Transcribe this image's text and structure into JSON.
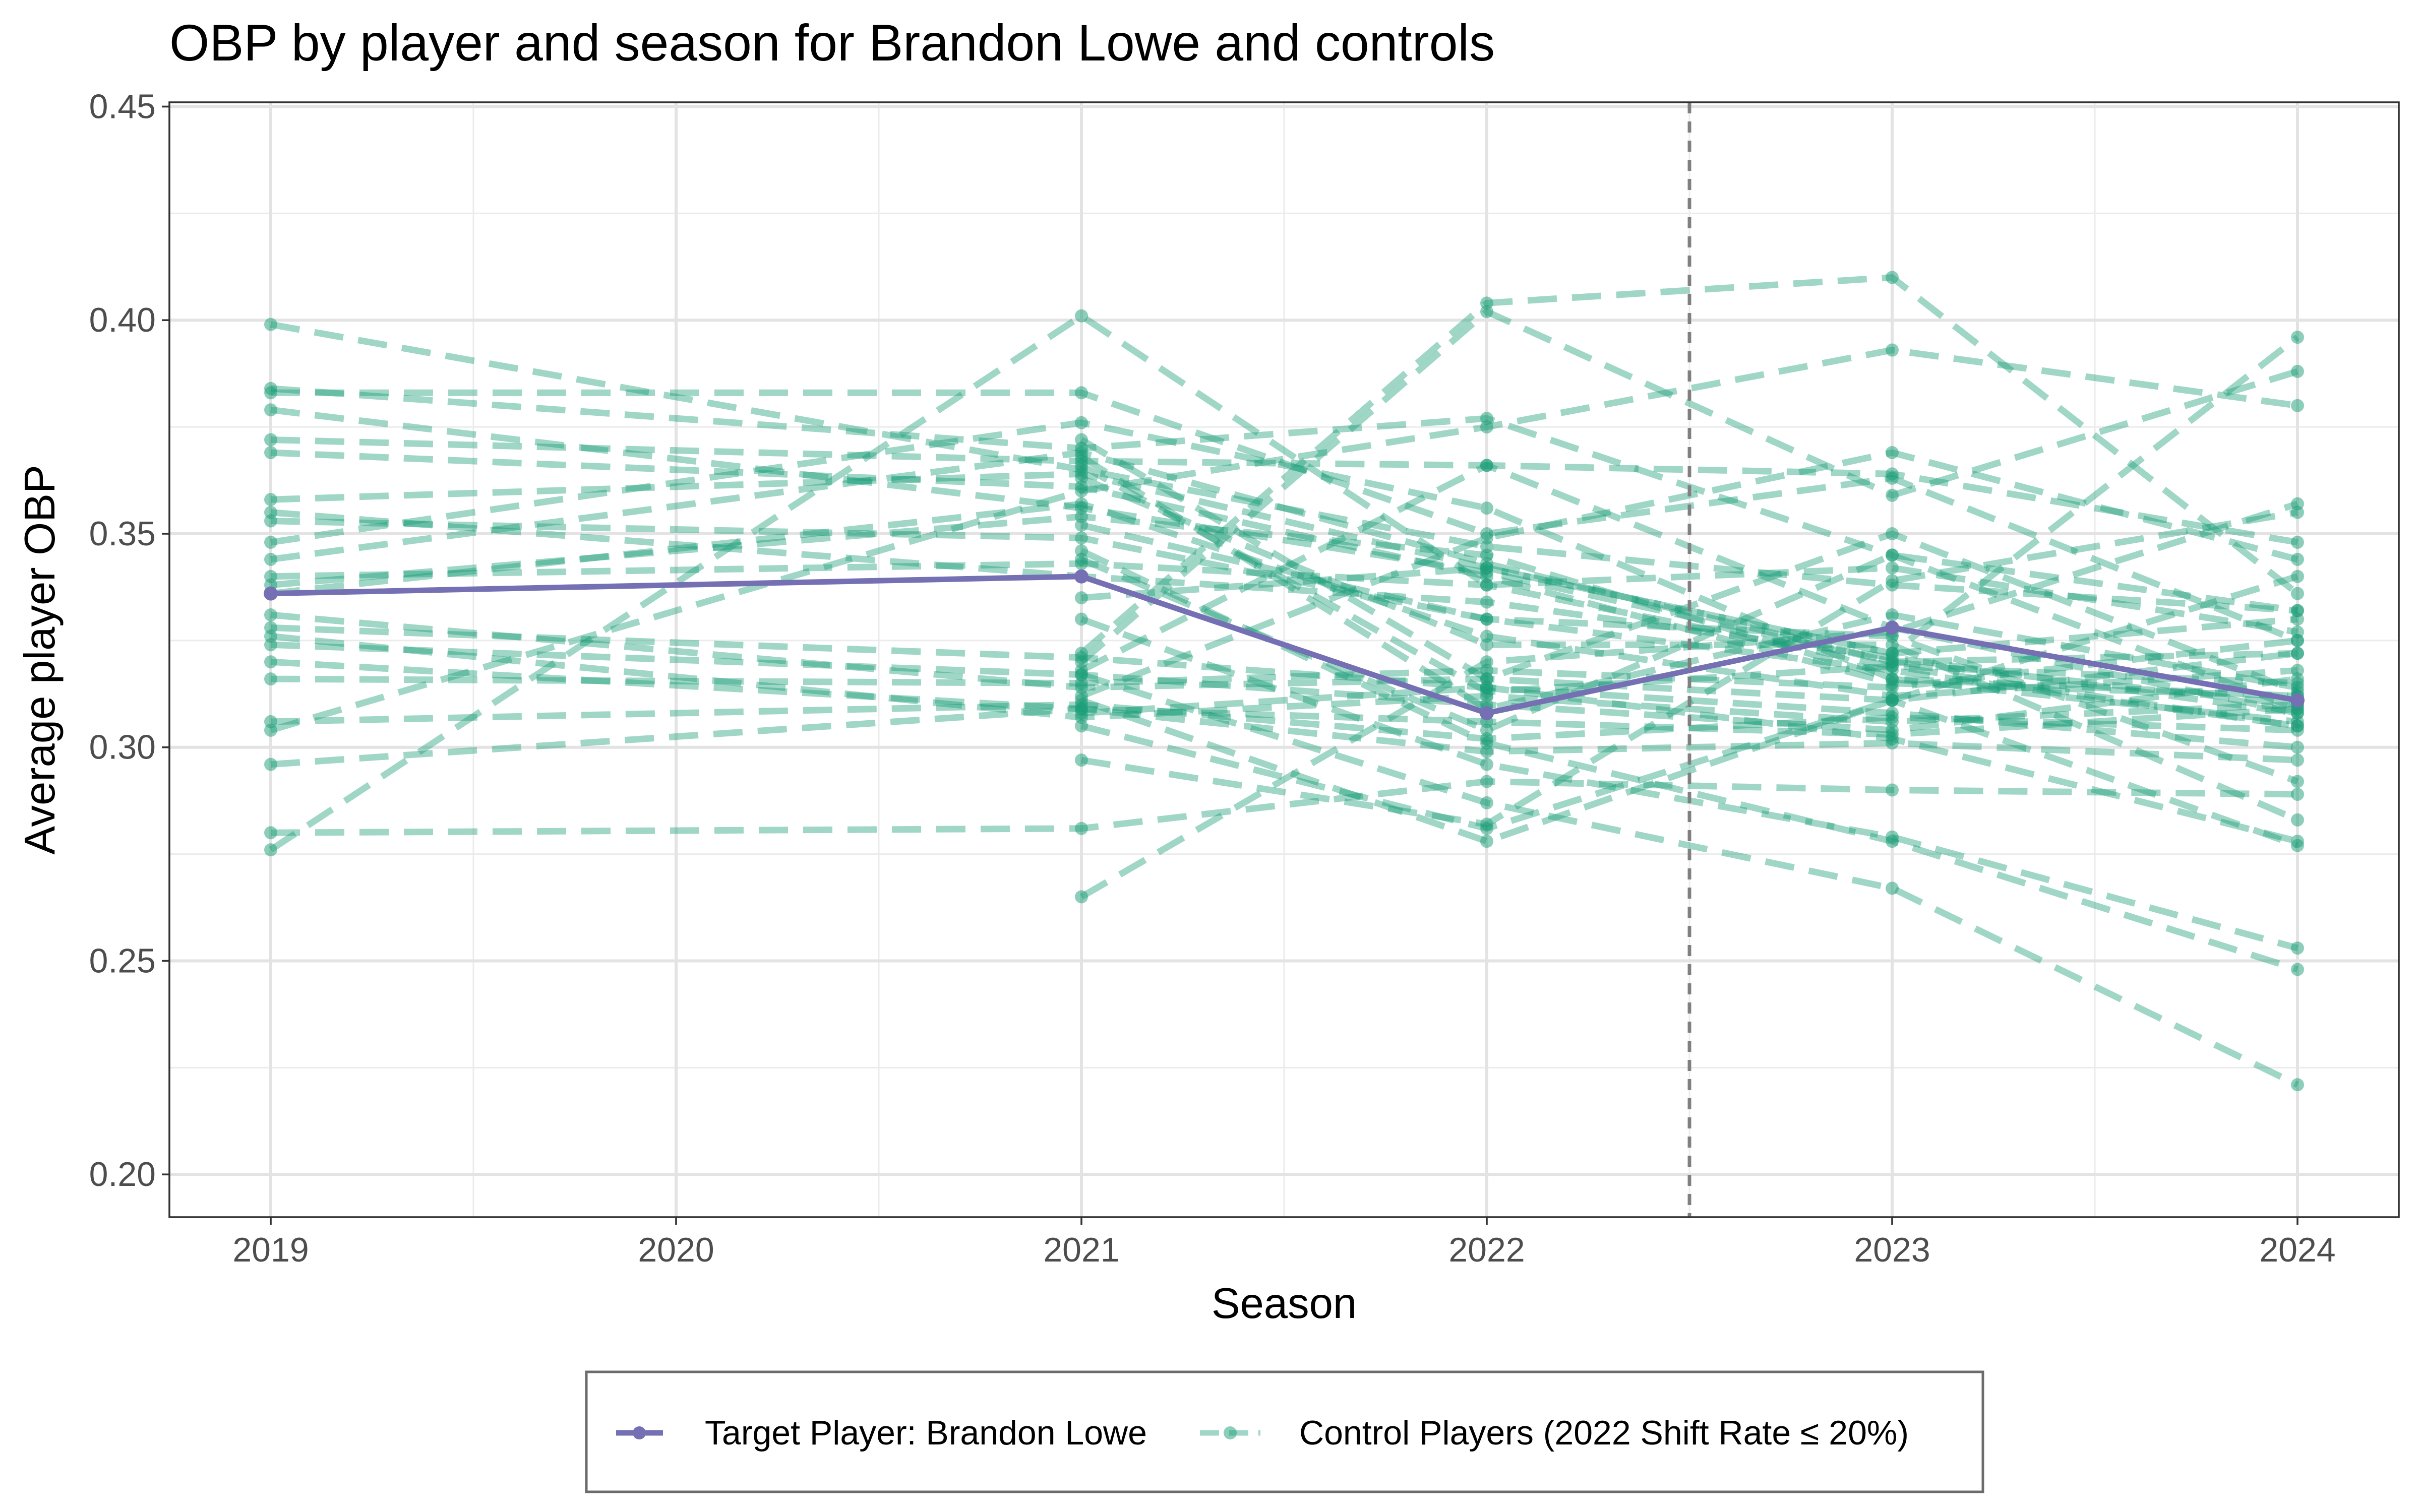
{
  "chart_data": {
    "type": "line",
    "title": "OBP by player and season for Brandon Lowe and controls",
    "xlabel": "Season",
    "ylabel": "Average player OBP",
    "x": [
      2019,
      2020,
      2021,
      2022,
      2023,
      2024
    ],
    "x_ticks": [
      "2019",
      "2020",
      "2021",
      "2022",
      "2023",
      "2024"
    ],
    "ylim": [
      0.19,
      0.451
    ],
    "y_ticks": [
      0.2,
      0.25,
      0.3,
      0.35,
      0.4,
      0.45
    ],
    "y_tick_labels": [
      "0.20",
      "0.25",
      "0.30",
      "0.35",
      "0.40",
      "0.45"
    ],
    "grid": true,
    "reference_line": {
      "x": 2022.5,
      "style": "dashed"
    },
    "legend": {
      "position": "bottom",
      "entries": [
        "Target Player: Brandon Lowe",
        "Control Players (2022 Shift Rate ≤ 20%)"
      ]
    },
    "colors": {
      "target": "#7570b3",
      "control": "#1b9e77",
      "reference": "#808080"
    },
    "target_series": {
      "name": "Target Player: Brandon Lowe",
      "points": [
        [
          2019,
          0.336
        ],
        [
          2021,
          0.34
        ],
        [
          2022,
          0.308
        ],
        [
          2023,
          0.328
        ],
        [
          2024,
          0.311
        ]
      ]
    },
    "control_series": [
      {
        "points": [
          [
            2019,
            0.399
          ],
          [
            2021,
            0.365
          ],
          [
            2022,
            0.347
          ],
          [
            2023,
            0.338
          ],
          [
            2024,
            0.332
          ]
        ]
      },
      {
        "points": [
          [
            2019,
            0.384
          ],
          [
            2021,
            0.37
          ],
          [
            2022,
            0.377
          ],
          [
            2023,
            0.345
          ],
          [
            2024,
            0.309
          ]
        ]
      },
      {
        "points": [
          [
            2019,
            0.383
          ],
          [
            2021,
            0.383
          ],
          [
            2022,
            0.35
          ],
          [
            2023,
            0.363
          ],
          [
            2024,
            0.325
          ]
        ]
      },
      {
        "points": [
          [
            2019,
            0.379
          ],
          [
            2021,
            0.356
          ],
          [
            2022,
            0.341
          ],
          [
            2023,
            0.32
          ],
          [
            2024,
            0.31
          ]
        ]
      },
      {
        "points": [
          [
            2019,
            0.372
          ],
          [
            2021,
            0.367
          ],
          [
            2022,
            0.366
          ],
          [
            2023,
            0.328
          ],
          [
            2024,
            0.308
          ]
        ]
      },
      {
        "points": [
          [
            2019,
            0.369
          ],
          [
            2021,
            0.361
          ],
          [
            2022,
            0.34
          ],
          [
            2023,
            0.315
          ],
          [
            2024,
            0.312
          ]
        ]
      },
      {
        "points": [
          [
            2019,
            0.358
          ],
          [
            2021,
            0.364
          ],
          [
            2022,
            0.342
          ],
          [
            2023,
            0.322
          ],
          [
            2024,
            0.33
          ]
        ]
      },
      {
        "points": [
          [
            2019,
            0.355
          ],
          [
            2021,
            0.34
          ],
          [
            2022,
            0.334
          ],
          [
            2023,
            0.321
          ],
          [
            2024,
            0.308
          ]
        ]
      },
      {
        "points": [
          [
            2019,
            0.353
          ],
          [
            2021,
            0.349
          ],
          [
            2022,
            0.33
          ],
          [
            2023,
            0.318
          ],
          [
            2024,
            0.305
          ]
        ]
      },
      {
        "points": [
          [
            2019,
            0.348
          ],
          [
            2021,
            0.376
          ],
          [
            2022,
            0.356
          ],
          [
            2023,
            0.316
          ],
          [
            2024,
            0.312
          ]
        ]
      },
      {
        "points": [
          [
            2019,
            0.344
          ],
          [
            2021,
            0.369
          ],
          [
            2022,
            0.343
          ],
          [
            2023,
            0.32
          ],
          [
            2024,
            0.322
          ]
        ]
      },
      {
        "points": [
          [
            2019,
            0.34
          ],
          [
            2021,
            0.343
          ],
          [
            2022,
            0.338
          ],
          [
            2023,
            0.319
          ],
          [
            2024,
            0.315
          ]
        ]
      },
      {
        "points": [
          [
            2019,
            0.338
          ],
          [
            2021,
            0.354
          ],
          [
            2022,
            0.345
          ],
          [
            2023,
            0.316
          ],
          [
            2024,
            0.306
          ]
        ]
      },
      {
        "points": [
          [
            2019,
            0.336
          ],
          [
            2021,
            0.357
          ],
          [
            2022,
            0.326
          ],
          [
            2023,
            0.312
          ],
          [
            2024,
            0.318
          ]
        ]
      },
      {
        "points": [
          [
            2019,
            0.331
          ],
          [
            2021,
            0.314
          ],
          [
            2022,
            0.316
          ],
          [
            2023,
            0.311
          ],
          [
            2024,
            0.322
          ]
        ]
      },
      {
        "points": [
          [
            2019,
            0.328
          ],
          [
            2021,
            0.321
          ],
          [
            2022,
            0.314
          ],
          [
            2023,
            0.308
          ],
          [
            2024,
            0.3
          ]
        ]
      },
      {
        "points": [
          [
            2019,
            0.326
          ],
          [
            2021,
            0.307
          ],
          [
            2022,
            0.312
          ],
          [
            2023,
            0.306
          ],
          [
            2024,
            0.31
          ]
        ]
      },
      {
        "points": [
          [
            2019,
            0.324
          ],
          [
            2021,
            0.317
          ],
          [
            2022,
            0.31
          ],
          [
            2023,
            0.304
          ],
          [
            2024,
            0.316
          ]
        ]
      },
      {
        "points": [
          [
            2019,
            0.32
          ],
          [
            2021,
            0.309
          ],
          [
            2022,
            0.306
          ],
          [
            2023,
            0.303
          ],
          [
            2024,
            0.309
          ]
        ]
      },
      {
        "points": [
          [
            2019,
            0.316
          ],
          [
            2021,
            0.315
          ],
          [
            2022,
            0.318
          ],
          [
            2023,
            0.314
          ],
          [
            2024,
            0.325
          ]
        ]
      },
      {
        "points": [
          [
            2019,
            0.306
          ],
          [
            2021,
            0.31
          ],
          [
            2022,
            0.302
          ],
          [
            2023,
            0.307
          ],
          [
            2024,
            0.304
          ]
        ]
      },
      {
        "points": [
          [
            2019,
            0.304
          ],
          [
            2021,
            0.36
          ],
          [
            2022,
            0.375
          ],
          [
            2023,
            0.393
          ],
          [
            2024,
            0.38
          ]
        ]
      },
      {
        "points": [
          [
            2019,
            0.296
          ],
          [
            2021,
            0.309
          ],
          [
            2022,
            0.299
          ],
          [
            2023,
            0.301
          ],
          [
            2024,
            0.297
          ]
        ]
      },
      {
        "points": [
          [
            2019,
            0.28
          ],
          [
            2021,
            0.281
          ],
          [
            2022,
            0.292
          ],
          [
            2023,
            0.29
          ],
          [
            2024,
            0.289
          ]
        ]
      },
      {
        "points": [
          [
            2019,
            0.276
          ],
          [
            2021,
            0.401
          ],
          [
            2022,
            0.338
          ],
          [
            2023,
            0.342
          ],
          [
            2024,
            0.327
          ]
        ]
      },
      {
        "points": [
          [
            2021,
            0.32
          ],
          [
            2022,
            0.402
          ],
          [
            2023,
            0.359
          ],
          [
            2024,
            0.388
          ]
        ]
      },
      {
        "points": [
          [
            2021,
            0.322
          ],
          [
            2022,
            0.404
          ],
          [
            2023,
            0.41
          ],
          [
            2024,
            0.336
          ]
        ]
      },
      {
        "points": [
          [
            2021,
            0.318
          ],
          [
            2022,
            0.366
          ],
          [
            2023,
            0.364
          ],
          [
            2024,
            0.348
          ]
        ]
      },
      {
        "points": [
          [
            2021,
            0.312
          ],
          [
            2022,
            0.349
          ],
          [
            2023,
            0.369
          ],
          [
            2024,
            0.344
          ]
        ]
      },
      {
        "points": [
          [
            2021,
            0.335
          ],
          [
            2022,
            0.342
          ],
          [
            2023,
            0.322
          ],
          [
            2024,
            0.396
          ]
        ]
      },
      {
        "points": [
          [
            2021,
            0.297
          ],
          [
            2022,
            0.282
          ],
          [
            2023,
            0.339
          ],
          [
            2024,
            0.355
          ]
        ]
      },
      {
        "points": [
          [
            2021,
            0.265
          ],
          [
            2022,
            0.32
          ],
          [
            2023,
            0.327
          ],
          [
            2024,
            0.357
          ]
        ]
      },
      {
        "points": [
          [
            2021,
            0.305
          ],
          [
            2022,
            0.281
          ],
          [
            2023,
            0.311
          ],
          [
            2024,
            0.34
          ]
        ]
      },
      {
        "points": [
          [
            2021,
            0.33
          ],
          [
            2022,
            0.296
          ],
          [
            2023,
            0.279
          ],
          [
            2024,
            0.253
          ]
        ]
      },
      {
        "points": [
          [
            2021,
            0.346
          ],
          [
            2022,
            0.301
          ],
          [
            2023,
            0.278
          ],
          [
            2024,
            0.248
          ]
        ]
      },
      {
        "points": [
          [
            2021,
            0.317
          ],
          [
            2022,
            0.287
          ],
          [
            2023,
            0.267
          ],
          [
            2024,
            0.221
          ]
        ]
      },
      {
        "points": [
          [
            2021,
            0.311
          ],
          [
            2022,
            0.278
          ],
          [
            2023,
            0.311
          ],
          [
            2024,
            0.277
          ]
        ]
      },
      {
        "points": [
          [
            2021,
            0.308
          ],
          [
            2022,
            0.314
          ],
          [
            2023,
            0.302
          ],
          [
            2024,
            0.278
          ]
        ]
      },
      {
        "points": [
          [
            2021,
            0.363
          ],
          [
            2022,
            0.324
          ],
          [
            2023,
            0.324
          ],
          [
            2024,
            0.283
          ]
        ]
      },
      {
        "points": [
          [
            2021,
            0.352
          ],
          [
            2022,
            0.33
          ],
          [
            2023,
            0.326
          ],
          [
            2024,
            0.292
          ]
        ]
      },
      {
        "points": [
          [
            2021,
            0.366
          ],
          [
            2022,
            0.313
          ],
          [
            2023,
            0.319
          ],
          [
            2024,
            0.305
          ]
        ]
      },
      {
        "points": [
          [
            2021,
            0.344
          ],
          [
            2022,
            0.304
          ],
          [
            2023,
            0.345
          ],
          [
            2024,
            0.332
          ]
        ]
      },
      {
        "points": [
          [
            2021,
            0.368
          ],
          [
            2022,
            0.309
          ],
          [
            2023,
            0.331
          ],
          [
            2024,
            0.314
          ]
        ]
      },
      {
        "points": [
          [
            2021,
            0.372
          ],
          [
            2022,
            0.316
          ],
          [
            2023,
            0.35
          ],
          [
            2024,
            0.313
          ]
        ]
      }
    ]
  }
}
